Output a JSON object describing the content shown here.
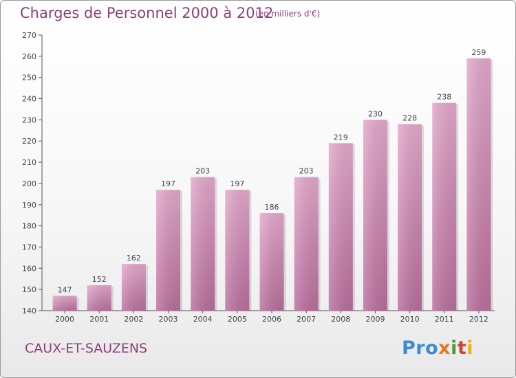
{
  "header": {
    "title": "Charges de Personnel 2000 à 2012",
    "subtitle": "(en milliers d'€)"
  },
  "footer": {
    "place": "CAUX-ET-SAUZENS",
    "logo": [
      "Pro",
      "x",
      "i",
      "t",
      "i"
    ]
  },
  "colors": {
    "accent": "#8e3f78",
    "bar_top": "#e3a8cb",
    "bar_bottom": "#b96e9c",
    "axis": "#555555"
  },
  "chart_data": {
    "type": "bar",
    "categories": [
      "2000",
      "2001",
      "2002",
      "2003",
      "2004",
      "2005",
      "2006",
      "2007",
      "2008",
      "2009",
      "2010",
      "2011",
      "2012"
    ],
    "values": [
      147,
      152,
      162,
      197,
      203,
      197,
      186,
      203,
      219,
      230,
      228,
      238,
      259
    ],
    "value_labels": [
      "147",
      "152",
      "162",
      "197",
      "203",
      "197",
      "186",
      "203",
      "219",
      "230",
      "228",
      "238",
      "259"
    ],
    "ylim": [
      140,
      270
    ],
    "yticks": [
      140,
      150,
      160,
      170,
      180,
      190,
      200,
      210,
      220,
      230,
      240,
      250,
      260,
      270
    ],
    "ytick_labels": [
      "140",
      "150",
      "160",
      "170",
      "180",
      "190",
      "200",
      "210",
      "220",
      "230",
      "240",
      "250",
      "260",
      "270"
    ],
    "grid": false,
    "legend": "none"
  }
}
